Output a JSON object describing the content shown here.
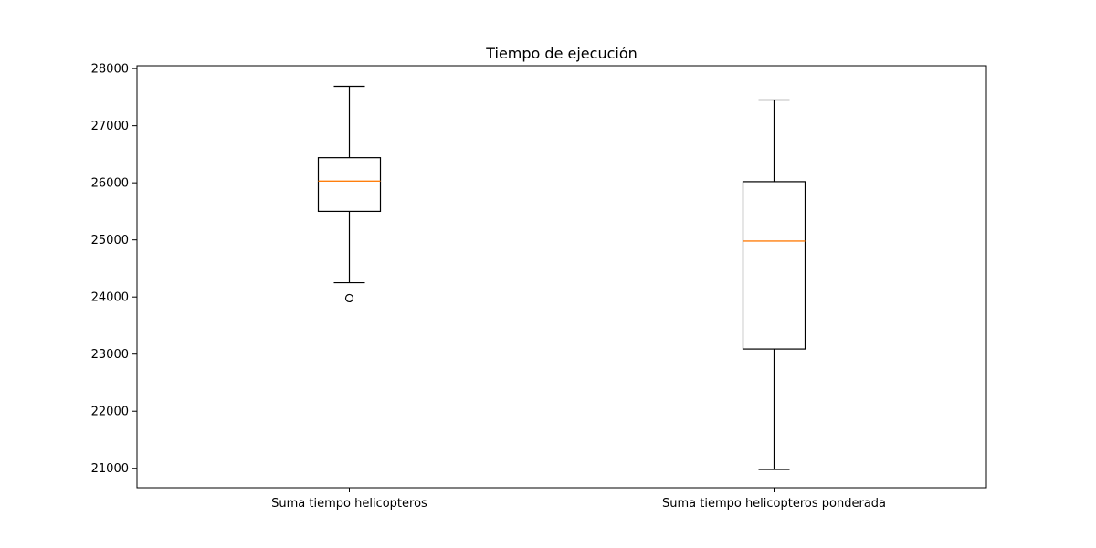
{
  "chart_data": {
    "type": "box",
    "title": "Tiempo de ejecución",
    "xlabel": "",
    "ylabel": "",
    "categories": [
      "Suma tiempo helicopteros",
      "Suma tiempo helicopteros ponderada"
    ],
    "boxes": [
      {
        "whisker_low": 24250,
        "q1": 25500,
        "median": 26030,
        "q3": 26440,
        "whisker_high": 27690,
        "outliers": [
          23980
        ]
      },
      {
        "whisker_low": 20980,
        "q1": 23090,
        "median": 24980,
        "q3": 26020,
        "whisker_high": 27450,
        "outliers": []
      }
    ],
    "ylim": [
      20660,
      28050
    ],
    "yticks": [
      21000,
      22000,
      23000,
      24000,
      25000,
      26000,
      27000,
      28000
    ],
    "grid": false,
    "colors": {
      "box": "#000000",
      "median": "#ff7f0e",
      "whisker": "#000000"
    }
  }
}
